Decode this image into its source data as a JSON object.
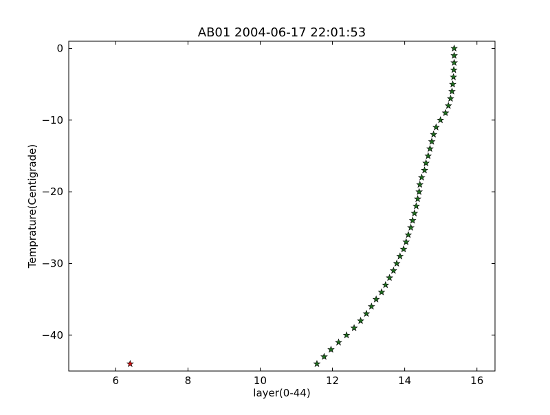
{
  "chart_data": {
    "type": "scatter",
    "title": "AB01 2004-06-17 22:01:53",
    "xlabel": "layer(0-44)",
    "ylabel": "Temprature(Centigrade)",
    "xlim": [
      4.7,
      16.5
    ],
    "ylim": [
      -45,
      1
    ],
    "xticks": [
      6,
      8,
      10,
      12,
      14,
      16
    ],
    "yticks": [
      0,
      -10,
      -20,
      -30,
      -40
    ],
    "xtick_labels": [
      "6",
      "8",
      "10",
      "12",
      "14",
      "16"
    ],
    "ytick_labels": [
      "0",
      "−10",
      "−20",
      "−30",
      "−40"
    ],
    "grid": false,
    "marker": "star",
    "series": [
      {
        "color": "#1f6b1f",
        "points": [
          [
            15.37,
            0
          ],
          [
            15.37,
            -1
          ],
          [
            15.37,
            -2
          ],
          [
            15.36,
            -3
          ],
          [
            15.35,
            -4
          ],
          [
            15.33,
            -5
          ],
          [
            15.31,
            -6
          ],
          [
            15.27,
            -7
          ],
          [
            15.21,
            -8
          ],
          [
            15.13,
            -9
          ],
          [
            14.99,
            -10
          ],
          [
            14.87,
            -11
          ],
          [
            14.8,
            -12
          ],
          [
            14.75,
            -13
          ],
          [
            14.7,
            -14
          ],
          [
            14.65,
            -15
          ],
          [
            14.59,
            -16
          ],
          [
            14.55,
            -17
          ],
          [
            14.47,
            -18
          ],
          [
            14.42,
            -19
          ],
          [
            14.4,
            -20
          ],
          [
            14.36,
            -21
          ],
          [
            14.32,
            -22
          ],
          [
            14.27,
            -23
          ],
          [
            14.22,
            -24
          ],
          [
            14.17,
            -25
          ],
          [
            14.1,
            -26
          ],
          [
            14.04,
            -27
          ],
          [
            13.97,
            -28
          ],
          [
            13.87,
            -29
          ],
          [
            13.78,
            -30
          ],
          [
            13.69,
            -31
          ],
          [
            13.58,
            -32
          ],
          [
            13.47,
            -33
          ],
          [
            13.36,
            -34
          ],
          [
            13.21,
            -35
          ],
          [
            13.08,
            -36
          ],
          [
            12.94,
            -37
          ],
          [
            12.78,
            -38
          ],
          [
            12.6,
            -39
          ],
          [
            12.39,
            -40
          ],
          [
            12.17,
            -41
          ],
          [
            11.96,
            -42
          ],
          [
            11.77,
            -43
          ],
          [
            11.57,
            -44
          ]
        ]
      },
      {
        "color": "#cc1111",
        "points": [
          [
            6.4,
            -44
          ]
        ]
      }
    ]
  }
}
